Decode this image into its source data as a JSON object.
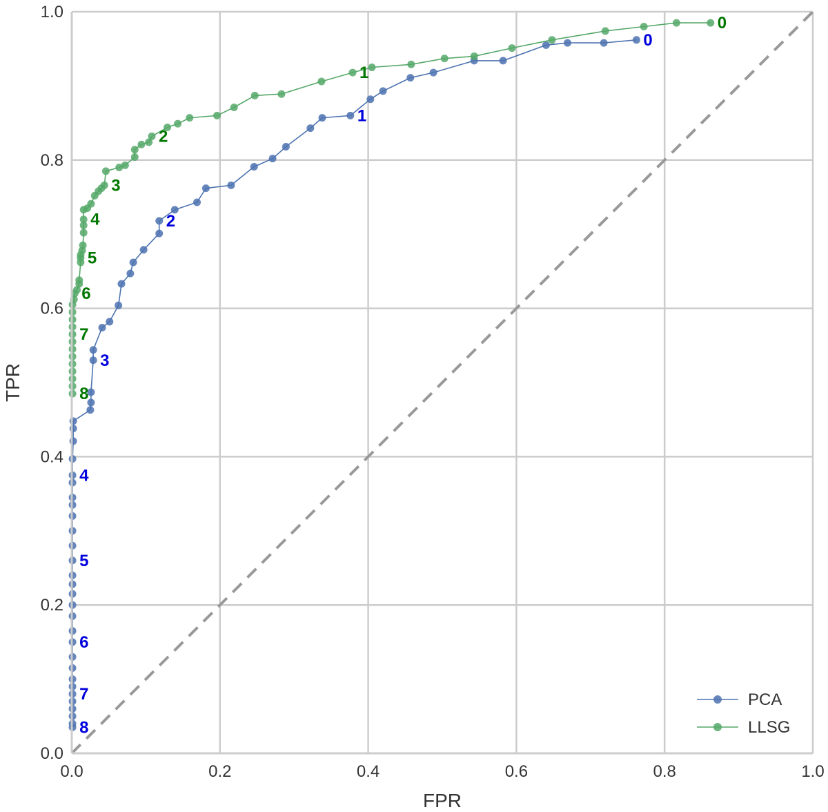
{
  "chart_data": {
    "type": "line",
    "xlabel": "FPR",
    "ylabel": "TPR",
    "xlim": [
      0.0,
      1.0
    ],
    "ylim": [
      0.0,
      1.0
    ],
    "grid": true,
    "legend_position": "bottom-right",
    "x_ticks": [
      "0.0",
      "0.2",
      "0.4",
      "0.6",
      "0.8",
      "1.0"
    ],
    "y_ticks": [
      "0.0",
      "0.2",
      "0.4",
      "0.6",
      "0.8",
      "1.0"
    ],
    "diagonal": {
      "style": "dashed",
      "color": "#999999",
      "from": [
        0,
        0
      ],
      "to": [
        1,
        1
      ]
    },
    "series": [
      {
        "name": "PCA",
        "color": "#4c72b0",
        "label_color": "#0000dd",
        "points": [
          [
            0.001,
            0.035
          ],
          [
            0.001,
            0.04
          ],
          [
            0.001,
            0.05
          ],
          [
            0.001,
            0.06
          ],
          [
            0.001,
            0.07
          ],
          [
            0.001,
            0.08
          ],
          [
            0.001,
            0.09
          ],
          [
            0.001,
            0.1
          ],
          [
            0.001,
            0.115
          ],
          [
            0.001,
            0.13
          ],
          [
            0.001,
            0.15
          ],
          [
            0.001,
            0.165
          ],
          [
            0.001,
            0.185
          ],
          [
            0.001,
            0.2
          ],
          [
            0.001,
            0.215
          ],
          [
            0.001,
            0.228
          ],
          [
            0.001,
            0.24
          ],
          [
            0.001,
            0.26
          ],
          [
            0.001,
            0.28
          ],
          [
            0.001,
            0.3
          ],
          [
            0.001,
            0.32
          ],
          [
            0.001,
            0.335
          ],
          [
            0.001,
            0.345
          ],
          [
            0.001,
            0.365
          ],
          [
            0.001,
            0.375
          ],
          [
            0.001,
            0.397
          ],
          [
            0.002,
            0.421
          ],
          [
            0.002,
            0.438
          ],
          [
            0.002,
            0.448
          ],
          [
            0.025,
            0.463
          ],
          [
            0.026,
            0.473
          ],
          [
            0.026,
            0.487
          ],
          [
            0.029,
            0.53
          ],
          [
            0.029,
            0.544
          ],
          [
            0.041,
            0.574
          ],
          [
            0.051,
            0.582
          ],
          [
            0.063,
            0.604
          ],
          [
            0.067,
            0.633
          ],
          [
            0.079,
            0.647
          ],
          [
            0.083,
            0.662
          ],
          [
            0.097,
            0.679
          ],
          [
            0.118,
            0.701
          ],
          [
            0.118,
            0.718
          ],
          [
            0.139,
            0.733
          ],
          [
            0.169,
            0.743
          ],
          [
            0.181,
            0.762
          ],
          [
            0.215,
            0.766
          ],
          [
            0.246,
            0.791
          ],
          [
            0.271,
            0.802
          ],
          [
            0.289,
            0.818
          ],
          [
            0.322,
            0.843
          ],
          [
            0.338,
            0.857
          ],
          [
            0.376,
            0.86
          ],
          [
            0.403,
            0.882
          ],
          [
            0.42,
            0.893
          ],
          [
            0.457,
            0.911
          ],
          [
            0.488,
            0.918
          ],
          [
            0.543,
            0.934
          ],
          [
            0.582,
            0.934
          ],
          [
            0.64,
            0.955
          ],
          [
            0.669,
            0.958
          ],
          [
            0.718,
            0.958
          ],
          [
            0.762,
            0.962
          ]
        ],
        "annotations": [
          {
            "text": "8",
            "x": 0.001,
            "y": 0.035
          },
          {
            "text": "7",
            "x": 0.001,
            "y": 0.08
          },
          {
            "text": "6",
            "x": 0.001,
            "y": 0.15
          },
          {
            "text": "5",
            "x": 0.001,
            "y": 0.26
          },
          {
            "text": "4",
            "x": 0.001,
            "y": 0.375
          },
          {
            "text": "3",
            "x": 0.029,
            "y": 0.53
          },
          {
            "text": "2",
            "x": 0.118,
            "y": 0.718
          },
          {
            "text": "1",
            "x": 0.376,
            "y": 0.86
          },
          {
            "text": "0",
            "x": 0.762,
            "y": 0.962
          }
        ]
      },
      {
        "name": "LLSG",
        "color": "#55a868",
        "label_color": "#007700",
        "points": [
          [
            0.001,
            0.485
          ],
          [
            0.001,
            0.495
          ],
          [
            0.001,
            0.505
          ],
          [
            0.001,
            0.515
          ],
          [
            0.001,
            0.525
          ],
          [
            0.001,
            0.535
          ],
          [
            0.001,
            0.545
          ],
          [
            0.001,
            0.555
          ],
          [
            0.001,
            0.565
          ],
          [
            0.001,
            0.575
          ],
          [
            0.001,
            0.585
          ],
          [
            0.001,
            0.595
          ],
          [
            0.001,
            0.605
          ],
          [
            0.003,
            0.612
          ],
          [
            0.004,
            0.62
          ],
          [
            0.007,
            0.625
          ],
          [
            0.01,
            0.633
          ],
          [
            0.01,
            0.638
          ],
          [
            0.012,
            0.662
          ],
          [
            0.012,
            0.668
          ],
          [
            0.012,
            0.672
          ],
          [
            0.014,
            0.678
          ],
          [
            0.015,
            0.685
          ],
          [
            0.016,
            0.702
          ],
          [
            0.016,
            0.712
          ],
          [
            0.016,
            0.72
          ],
          [
            0.016,
            0.733
          ],
          [
            0.021,
            0.735
          ],
          [
            0.026,
            0.741
          ],
          [
            0.031,
            0.752
          ],
          [
            0.036,
            0.758
          ],
          [
            0.04,
            0.762
          ],
          [
            0.044,
            0.766
          ],
          [
            0.046,
            0.785
          ],
          [
            0.064,
            0.79
          ],
          [
            0.072,
            0.793
          ],
          [
            0.085,
            0.804
          ],
          [
            0.085,
            0.814
          ],
          [
            0.094,
            0.821
          ],
          [
            0.104,
            0.824
          ],
          [
            0.108,
            0.832
          ],
          [
            0.129,
            0.844
          ],
          [
            0.143,
            0.849
          ],
          [
            0.159,
            0.857
          ],
          [
            0.196,
            0.86
          ],
          [
            0.219,
            0.871
          ],
          [
            0.247,
            0.887
          ],
          [
            0.283,
            0.889
          ],
          [
            0.337,
            0.906
          ],
          [
            0.379,
            0.918
          ],
          [
            0.405,
            0.925
          ],
          [
            0.458,
            0.929
          ],
          [
            0.503,
            0.937
          ],
          [
            0.543,
            0.94
          ],
          [
            0.594,
            0.951
          ],
          [
            0.648,
            0.962
          ],
          [
            0.72,
            0.974
          ],
          [
            0.772,
            0.98
          ],
          [
            0.816,
            0.985
          ],
          [
            0.862,
            0.985
          ]
        ],
        "annotations": [
          {
            "text": "8",
            "x": 0.001,
            "y": 0.485
          },
          {
            "text": "7",
            "x": 0.001,
            "y": 0.565
          },
          {
            "text": "6",
            "x": 0.004,
            "y": 0.62
          },
          {
            "text": "5",
            "x": 0.012,
            "y": 0.668
          },
          {
            "text": "4",
            "x": 0.016,
            "y": 0.72
          },
          {
            "text": "3",
            "x": 0.044,
            "y": 0.766
          },
          {
            "text": "2",
            "x": 0.108,
            "y": 0.832
          },
          {
            "text": "1",
            "x": 0.379,
            "y": 0.918
          },
          {
            "text": "0",
            "x": 0.862,
            "y": 0.985
          }
        ]
      }
    ]
  }
}
